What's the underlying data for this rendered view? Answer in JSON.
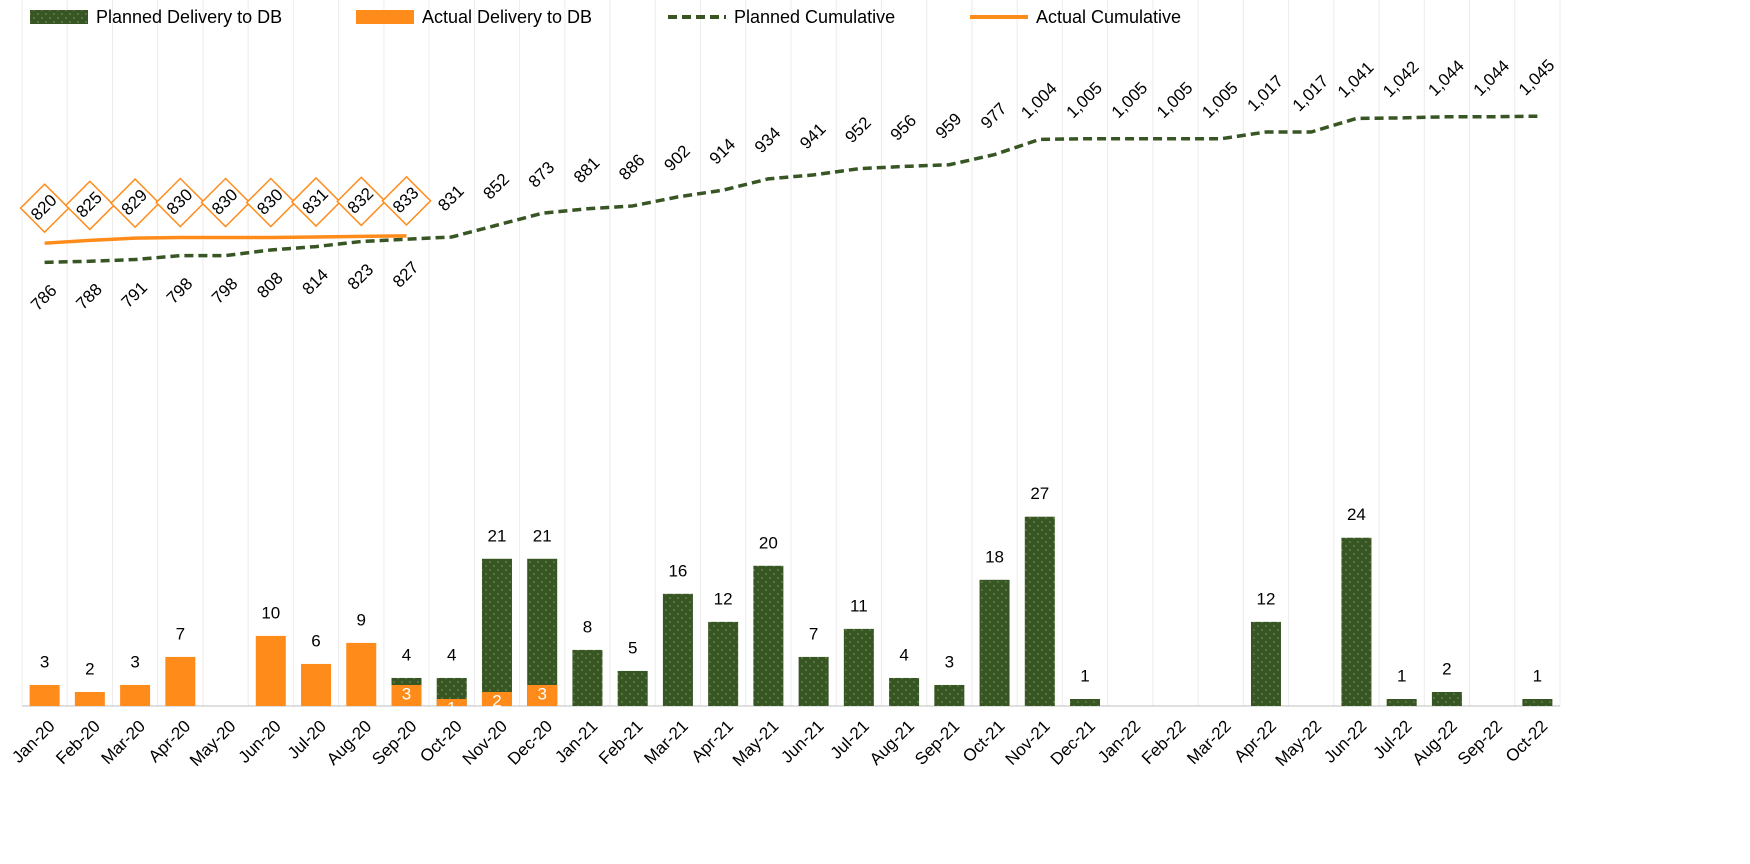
{
  "chart_data": {
    "type": "bar",
    "categories": [
      "Jan-20",
      "Feb-20",
      "Mar-20",
      "Apr-20",
      "May-20",
      "Jun-20",
      "Jul-20",
      "Aug-20",
      "Sep-20",
      "Oct-20",
      "Nov-20",
      "Dec-20",
      "Jan-21",
      "Feb-21",
      "Mar-21",
      "Apr-21",
      "May-21",
      "Jun-21",
      "Jul-21",
      "Aug-21",
      "Sep-21",
      "Oct-21",
      "Nov-21",
      "Dec-21",
      "Jan-22",
      "Feb-22",
      "Mar-22",
      "Apr-22",
      "May-22",
      "Jun-22",
      "Jul-22",
      "Aug-22",
      "Sep-22",
      "Oct-22"
    ],
    "series": [
      {
        "name": "Planned Delivery to DB",
        "color": "#375623",
        "type": "bar",
        "values": [
          null,
          null,
          null,
          null,
          null,
          null,
          null,
          null,
          4,
          4,
          21,
          21,
          8,
          5,
          16,
          12,
          20,
          7,
          11,
          4,
          3,
          18,
          27,
          1,
          null,
          null,
          null,
          12,
          null,
          24,
          1,
          2,
          null,
          1
        ]
      },
      {
        "name": "Actual Delivery to DB",
        "color": "#ff8c1a",
        "type": "bar",
        "values": [
          3,
          2,
          3,
          7,
          null,
          10,
          6,
          9,
          3,
          1,
          2,
          3,
          null,
          null,
          null,
          null,
          null,
          null,
          null,
          null,
          null,
          null,
          null,
          null,
          null,
          null,
          null,
          null,
          null,
          null,
          null,
          null,
          null,
          null
        ]
      },
      {
        "name": "Planned Cumulative",
        "color": "#375623",
        "type": "line",
        "style": "dashed",
        "axis": "y2",
        "values": [
          786,
          788,
          791,
          798,
          798,
          808,
          814,
          823,
          827,
          831,
          852,
          873,
          881,
          886,
          902,
          914,
          934,
          941,
          952,
          956,
          959,
          977,
          1004,
          1005,
          1005,
          1005,
          1005,
          1017,
          1017,
          1041,
          1042,
          1044,
          1044,
          1045
        ],
        "value_labels": [
          "786",
          "788",
          "791",
          "798",
          "798",
          "808",
          "814",
          "823",
          "827",
          "831",
          "852",
          "873",
          "881",
          "886",
          "902",
          "914",
          "934",
          "941",
          "952",
          "956",
          "959",
          "977",
          "1,004",
          "1,005",
          "1,005",
          "1,005",
          "1,005",
          "1,017",
          "1,017",
          "1,041",
          "1,042",
          "1,044",
          "1,044",
          "1,045"
        ]
      },
      {
        "name": "Actual Cumulative",
        "color": "#ff8c1a",
        "type": "line",
        "style": "solid",
        "axis": "y2",
        "values": [
          820,
          825,
          829,
          830,
          830,
          830,
          831,
          832,
          833,
          null,
          null,
          null,
          null,
          null,
          null,
          null,
          null,
          null,
          null,
          null,
          null,
          null,
          null,
          null,
          null,
          null,
          null,
          null,
          null,
          null,
          null,
          null,
          null,
          null
        ]
      }
    ],
    "ylim": [
      0,
      95
    ],
    "y2lim": [
      0,
      1180
    ],
    "grid": true
  }
}
